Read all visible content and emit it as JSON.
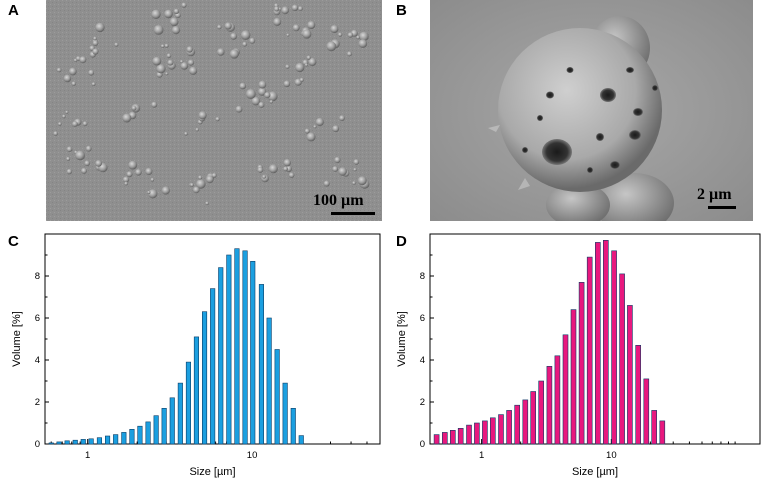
{
  "panels": {
    "a": {
      "letter": "A",
      "scale_label": "100 µm"
    },
    "b": {
      "letter": "B",
      "scale_label": "2 µm"
    },
    "c": {
      "letter": "C"
    },
    "d": {
      "letter": "D"
    }
  },
  "chart_data": [
    {
      "type": "bar",
      "xlabel": "Size [µm]",
      "ylabel": "Volume [%]",
      "x_scale": "log",
      "xlim": [
        0.55,
        60
      ],
      "ylim": [
        0,
        10
      ],
      "yticks": [
        0,
        2,
        4,
        6,
        8
      ],
      "xticks": [
        1,
        10
      ],
      "color": "#1b9fe0",
      "x": [
        0.6,
        0.67,
        0.75,
        0.84,
        0.94,
        1.05,
        1.18,
        1.32,
        1.48,
        1.66,
        1.86,
        2.08,
        2.33,
        2.61,
        2.92,
        3.27,
        3.66,
        4.1,
        4.59,
        5.14,
        5.76,
        6.45,
        7.22,
        8.09,
        9.06,
        10.1,
        11.4,
        12.7,
        14.2,
        15.9,
        17.8,
        19.9
      ],
      "values": [
        0.05,
        0.1,
        0.15,
        0.18,
        0.22,
        0.25,
        0.3,
        0.38,
        0.45,
        0.55,
        0.7,
        0.85,
        1.05,
        1.35,
        1.7,
        2.2,
        2.9,
        3.9,
        5.1,
        6.3,
        7.4,
        8.4,
        9.0,
        9.3,
        9.2,
        8.7,
        7.6,
        6.0,
        4.5,
        2.9,
        1.7,
        0.4
      ]
    },
    {
      "type": "bar",
      "xlabel": "Size [µm]",
      "ylabel": "Volume [%]",
      "x_scale": "log",
      "xlim": [
        0.4,
        140
      ],
      "ylim": [
        0,
        10
      ],
      "yticks": [
        0,
        2,
        4,
        6,
        8
      ],
      "xticks": [
        1,
        10
      ],
      "color": "#e8187e",
      "x": [
        0.45,
        0.52,
        0.6,
        0.69,
        0.8,
        0.92,
        1.06,
        1.22,
        1.41,
        1.63,
        1.88,
        2.17,
        2.5,
        2.88,
        3.33,
        3.84,
        4.43,
        5.11,
        5.9,
        6.81,
        7.86,
        9.07,
        10.5,
        12.1,
        13.9,
        16.1,
        18.6,
        21.4,
        24.7,
        28.5,
        32.9
      ],
      "values": [
        0.45,
        0.55,
        0.65,
        0.75,
        0.9,
        1.0,
        1.1,
        1.25,
        1.4,
        1.6,
        1.85,
        2.1,
        2.5,
        3.0,
        3.7,
        4.2,
        5.2,
        6.4,
        7.7,
        8.9,
        9.6,
        9.7,
        9.2,
        8.1,
        6.6,
        4.7,
        3.1,
        1.6,
        1.1,
        0.0,
        0.0
      ]
    }
  ]
}
